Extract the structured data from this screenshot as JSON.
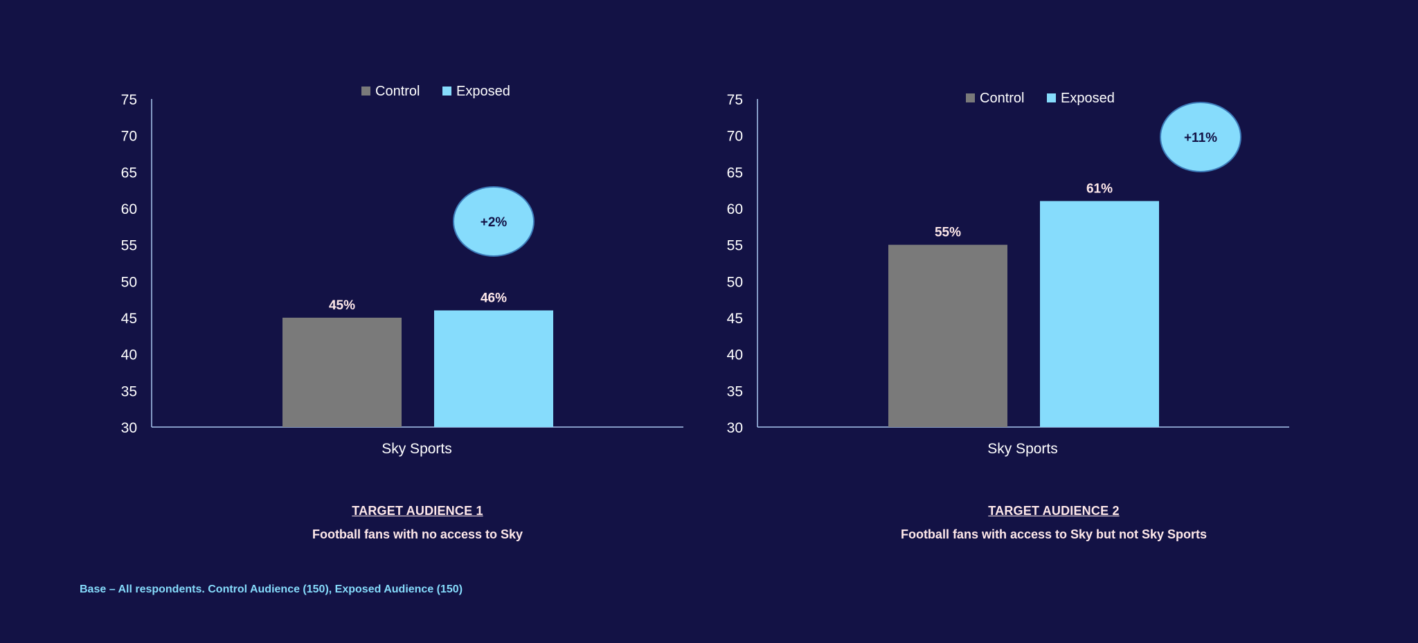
{
  "colors": {
    "background": "#131245",
    "control": "#7a7a7a",
    "exposed": "#86dcfc",
    "axis": "#a9c8f0",
    "text": "#ffffff",
    "label_text": "#ffe9ea",
    "bubble_fill": "#86dcfc",
    "bubble_stroke": "#3c7ab8",
    "bubble_text": "#131245"
  },
  "chart_data": [
    {
      "type": "bar",
      "categories": [
        "Sky Sports"
      ],
      "series": [
        {
          "name": "Control",
          "values": [
            45
          ],
          "color": "#7a7a7a"
        },
        {
          "name": "Exposed",
          "values": [
            46
          ],
          "color": "#86dcfc"
        }
      ],
      "data_labels": [
        "45%",
        "46%"
      ],
      "ylim": [
        30,
        75
      ],
      "yticks": [
        30,
        35,
        40,
        45,
        50,
        55,
        60,
        65,
        70,
        75
      ],
      "legend": "top-center",
      "grid": false,
      "annotation": "+2%"
    },
    {
      "type": "bar",
      "categories": [
        "Sky Sports"
      ],
      "series": [
        {
          "name": "Control",
          "values": [
            55
          ],
          "color": "#7a7a7a"
        },
        {
          "name": "Exposed",
          "values": [
            61
          ],
          "color": "#86dcfc"
        }
      ],
      "data_labels": [
        "55%",
        "61%"
      ],
      "ylim": [
        30,
        75
      ],
      "yticks": [
        30,
        35,
        40,
        45,
        50,
        55,
        60,
        65,
        70,
        75
      ],
      "legend": "top-center",
      "grid": false,
      "annotation": "+11%"
    }
  ],
  "captions": [
    {
      "title": "TARGET AUDIENCE 1",
      "subtitle": "Football fans with no access to Sky"
    },
    {
      "title": "TARGET AUDIENCE 2",
      "subtitle": "Football fans with access to Sky but not Sky Sports"
    }
  ],
  "footnote": "Base – All respondents. Control Audience (150), Exposed Audience (150)"
}
